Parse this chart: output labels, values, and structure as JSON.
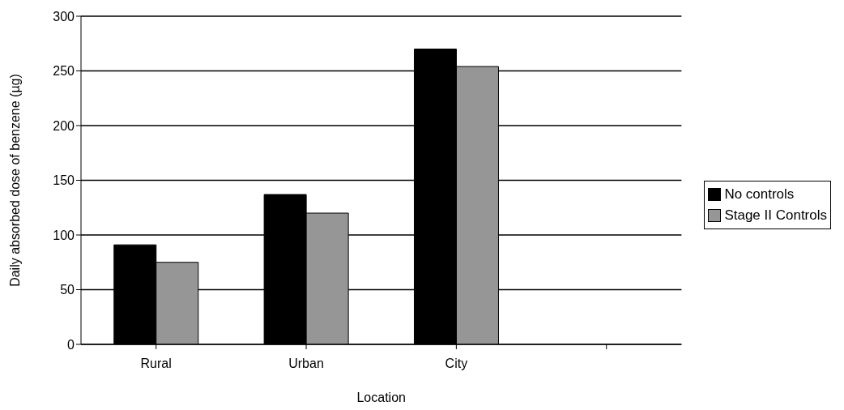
{
  "chart_data": {
    "type": "bar",
    "xlabel": "Location",
    "ylabel": "Daily absorbed dose of benzene (µg)",
    "categories": [
      "Rural",
      "Urban",
      "City",
      null
    ],
    "series": [
      {
        "name": "No controls",
        "color": "#000000",
        "values": [
          91,
          137,
          270,
          null
        ]
      },
      {
        "name": "Stage II Controls",
        "color": "#969696",
        "values": [
          75,
          120,
          254,
          null
        ]
      }
    ],
    "ylim": [
      0,
      300
    ],
    "yticks": [
      0,
      50,
      100,
      150,
      200,
      250,
      300
    ],
    "grid": "y",
    "legend": "right"
  }
}
